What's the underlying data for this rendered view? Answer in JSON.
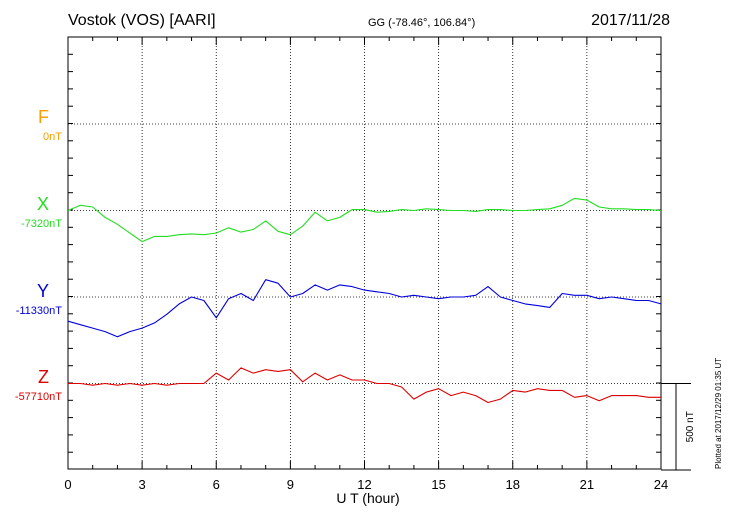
{
  "header": {
    "station": "Vostok (VOS)  [AARI]",
    "coords": "GG (-78.46°, 106.84°)",
    "date": "2017/11/28"
  },
  "footer": {
    "xlabel": "U T (hour)",
    "plotted": "Plotted at 2017/12/29 01:35 UT",
    "scale_label": "500 nT"
  },
  "channels": [
    {
      "letter": "F",
      "offset": "0nT",
      "color": "#f5a000"
    },
    {
      "letter": "X",
      "offset": "-7320nT",
      "color": "#22dd22"
    },
    {
      "letter": "Y",
      "offset": "-11330nT",
      "color": "#0000dd"
    },
    {
      "letter": "Z",
      "offset": "-57710nT",
      "color": "#dd0000"
    }
  ],
  "chart_data": {
    "type": "line",
    "title": "Vostok (VOS)  [AARI]",
    "xlabel": "U T (hour)",
    "ylabel": "",
    "xlim": [
      0,
      24
    ],
    "xticks": [
      0,
      3,
      6,
      9,
      12,
      15,
      18,
      21,
      24
    ],
    "ylim_nT": [
      -2000,
      3000
    ],
    "scale_bar_nT": 500,
    "grid": true,
    "x": [
      0,
      0.5,
      1,
      1.5,
      2,
      2.5,
      3,
      3.5,
      4,
      4.5,
      5,
      5.5,
      6,
      6.5,
      7,
      7.5,
      8,
      8.5,
      9,
      9.5,
      10,
      10.5,
      11,
      11.5,
      12,
      12.5,
      13,
      13.5,
      14,
      14.5,
      15,
      15.5,
      16,
      16.5,
      17,
      17.5,
      18,
      18.5,
      19,
      19.5,
      20,
      20.5,
      21,
      21.5,
      22,
      22.5,
      23,
      23.5,
      24
    ],
    "series": [
      {
        "name": "X",
        "baseline_nT": -7320,
        "values": [
          0,
          30,
          20,
          -40,
          -80,
          -130,
          -180,
          -150,
          -150,
          -140,
          -135,
          -140,
          -130,
          -100,
          -125,
          -110,
          -60,
          -120,
          -140,
          -90,
          -10,
          -60,
          -40,
          5,
          5,
          -10,
          -5,
          5,
          0,
          10,
          5,
          0,
          0,
          -5,
          5,
          5,
          0,
          0,
          5,
          10,
          30,
          70,
          60,
          20,
          10,
          10,
          5,
          5,
          0
        ]
      },
      {
        "name": "Y",
        "baseline_nT": -11330,
        "values": [
          -140,
          -160,
          -180,
          -200,
          -230,
          -200,
          -180,
          -150,
          -100,
          -40,
          0,
          -20,
          -120,
          -10,
          20,
          -20,
          100,
          80,
          0,
          20,
          70,
          40,
          70,
          60,
          40,
          30,
          20,
          0,
          10,
          0,
          -10,
          0,
          0,
          10,
          60,
          0,
          -20,
          -40,
          -50,
          -60,
          20,
          10,
          10,
          -10,
          0,
          -10,
          -20,
          -20,
          -40
        ]
      },
      {
        "name": "Z",
        "baseline_nT": -57710,
        "values": [
          0,
          0,
          -10,
          0,
          -10,
          0,
          -10,
          0,
          -10,
          0,
          0,
          0,
          60,
          20,
          90,
          60,
          80,
          70,
          80,
          10,
          60,
          20,
          50,
          20,
          20,
          0,
          0,
          -20,
          -90,
          -50,
          -30,
          -70,
          -50,
          -70,
          -110,
          -90,
          -40,
          -50,
          -30,
          -40,
          -40,
          -80,
          -70,
          -100,
          -70,
          -70,
          -70,
          -80,
          -80
        ]
      }
    ]
  }
}
